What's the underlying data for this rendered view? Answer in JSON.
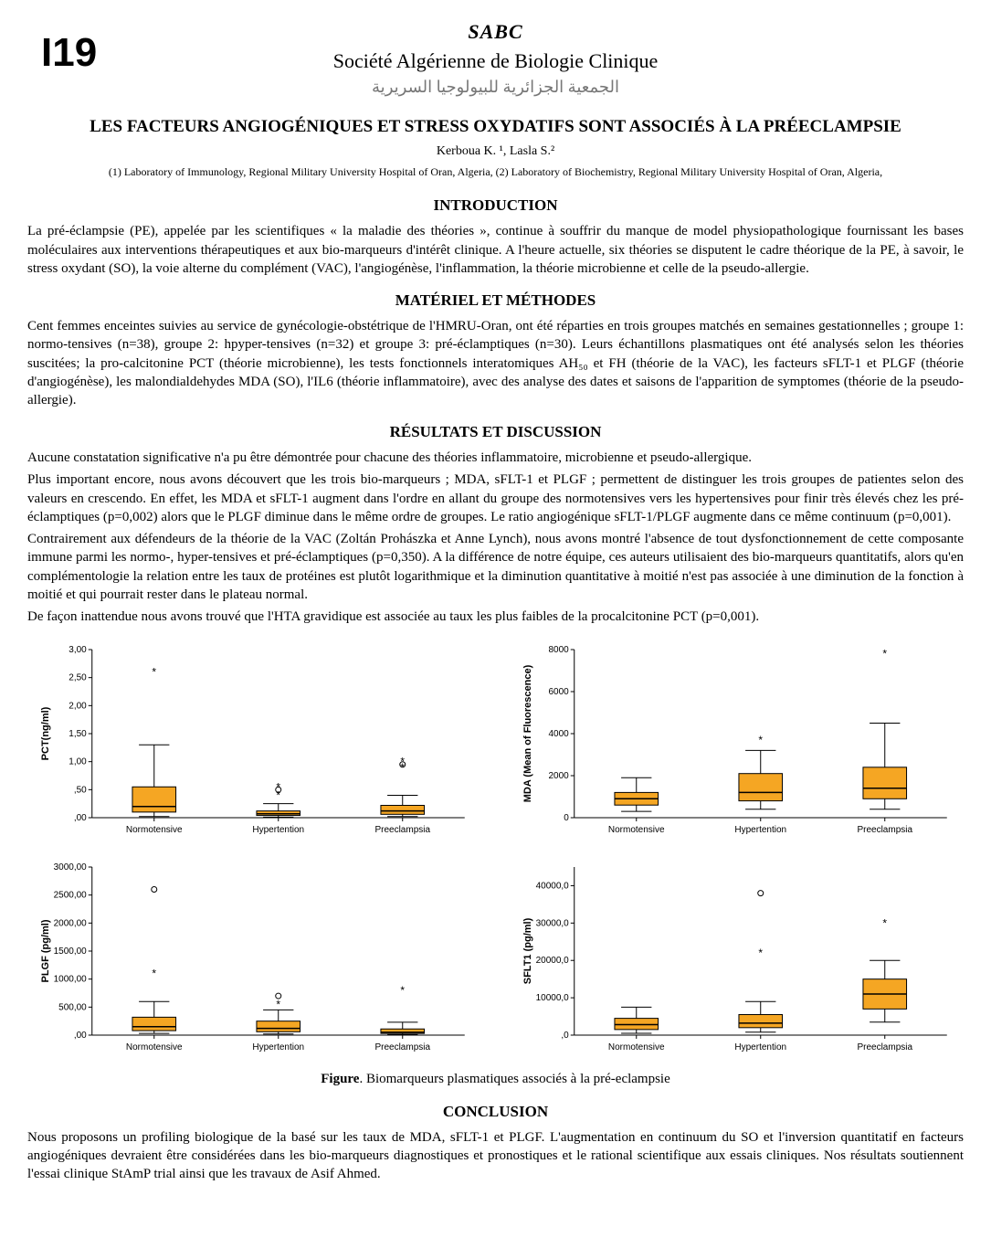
{
  "header": {
    "abstract_id": "I19",
    "logo_text": "SABC",
    "society_fr": "Société Algérienne de Biologie Clinique",
    "society_ar": "الجمعية الجزائرية للبيولوجيا السريرية"
  },
  "title": "LES FACTEURS ANGIOGÉNIQUES ET STRESS OXYDATIFS SONT ASSOCIÉS À LA PRÉECLAMPSIE",
  "authors": "Kerboua K. ¹, Lasla S.²",
  "affiliations": "(1) Laboratory of Immunology, Regional Military University Hospital of Oran, Algeria, (2) Laboratory of Biochemistry, Regional Military University Hospital of Oran, Algeria,",
  "sections": {
    "intro_head": "INTRODUCTION",
    "intro_body": "La pré-éclampsie (PE), appelée par les scientifiques « la maladie des théories », continue à souffrir du manque de model physiopathologique fournissant les bases moléculaires aux interventions thérapeutiques et aux bio-marqueurs d'intérêt clinique. A l'heure actuelle, six théories se disputent le cadre théorique de la PE, à savoir, le stress oxydant (SO), la voie alterne du complément (VAC), l'angiogénèse, l'inflammation, la théorie microbienne et celle de la pseudo-allergie.",
    "methods_head": "MATÉRIEL ET MÉTHODES",
    "methods_body": "Cent femmes enceintes suivies au service de gynécologie-obstétrique de l'HMRU-Oran, ont été réparties en trois groupes  matchés en semaines gestationnelles ; groupe 1: normo-tensives (n=38), groupe 2: hpyper-tensives (n=32) et groupe 3: pré-éclamptiques (n=30). Leurs échantillons plasmatiques ont été analysés selon les théories suscitées; la pro-calcitonine PCT (théorie microbienne), les tests fonctionnels interatomiques AH₅₀ et FH (théorie de la VAC), les facteurs sFLT-1 et PLGF (théorie d'angiogénèse), les malondialdehydes MDA (SO), l'IL6 (théorie inflammatoire), avec des analyse des dates et saisons de l'apparition de symptomes (théorie de la pseudo-allergie).",
    "results_head": "RÉSULTATS ET DISCUSSION",
    "results_p1": "Aucune constatation significative n'a pu être démontrée pour chacune des théories inflammatoire, microbienne et pseudo-allergique.",
    "results_p2": "Plus important encore, nous avons découvert que les trois bio-marqueurs ; MDA, sFLT-1 et PLGF ; permettent de distinguer les trois groupes de patientes selon des valeurs en crescendo. En effet, les MDA et sFLT-1 augment dans l'ordre en allant du groupe des normotensives vers les hypertensives pour finir très élevés chez les pré-éclamptiques (p=0,002) alors que le PLGF diminue dans le même ordre de groupes. Le ratio angiogénique sFLT-1/PLGF augmente dans ce même continuum (p=0,001).",
    "results_p3": "Contrairement aux défendeurs de la théorie de la VAC (Zoltán Prohászka et Anne Lynch), nous avons montré l'absence de tout dysfonctionnement de cette composante immune parmi les normo-, hyper-tensives et pré-éclamptiques (p=0,350). A la différence de notre équipe, ces auteurs utilisaient des bio-marqueurs quantitatifs, alors qu'en complémentologie la relation entre les taux de protéines est plutôt logarithmique et la diminution quantitative à moitié n'est pas associée à une diminution de la fonction à moitié et qui pourrait rester dans le plateau normal.",
    "results_p4": "De façon inattendue nous avons trouvé  que l'HTA gravidique est associée au taux les plus faibles de la procalcitonine PCT (p=0,001).",
    "figure_caption": "Figure. Biomarqueurs plasmatiques associés à la pré-eclampsie",
    "conclusion_head": "CONCLUSION",
    "conclusion_body": "Nous proposons un profiling biologique de la basé sur les taux de MDA, sFLT-1 et PLGF. L'augmentation en continuum du SO et l'inversion quantitatif en facteurs angiogéniques devraient être considérées dans les bio-marqueurs diagnostiques et pronostiques et le rational scientifique aux essais cliniques. Nos résultats soutiennent l'essai clinique StAmP trial ainsi que les travaux de Asif Ahmed."
  },
  "charts": {
    "common": {
      "box_fill": "#f5a623",
      "box_stroke": "#000000",
      "whisker_stroke": "#000000",
      "outlier_stroke": "#000000",
      "axis_stroke": "#000000",
      "tick_fontsize": 10,
      "label_fontsize": 11,
      "categories": [
        "Normotensive",
        "Hypertention",
        "Preeclampsia"
      ]
    },
    "pct": {
      "ylabel": "PCT(ng/ml)",
      "ylim": [
        0,
        3.0
      ],
      "yticks": [
        0,
        0.5,
        1.0,
        1.5,
        2.0,
        2.5,
        3.0
      ],
      "ytick_labels": [
        ",00",
        ",50",
        "1,00",
        "1,50",
        "2,00",
        "2,50",
        "3,00"
      ],
      "boxes": [
        {
          "q1": 0.1,
          "median": 0.2,
          "q3": 0.55,
          "wlow": 0.02,
          "whigh": 1.3,
          "outliers": [
            2.6
          ]
        },
        {
          "q1": 0.04,
          "median": 0.07,
          "q3": 0.12,
          "wlow": 0.01,
          "whigh": 0.25,
          "outliers": [
            0.4,
            0.5,
            0.55
          ]
        },
        {
          "q1": 0.06,
          "median": 0.12,
          "q3": 0.22,
          "wlow": 0.02,
          "whigh": 0.4,
          "outliers": [
            0.9,
            0.95,
            1.0
          ]
        }
      ]
    },
    "mda": {
      "ylabel": "MDA (Mean of Fluorescence)",
      "ylim": [
        0,
        8000
      ],
      "yticks": [
        0,
        2000,
        4000,
        6000,
        8000
      ],
      "ytick_labels": [
        "0",
        "2000",
        "4000",
        "6000",
        "8000"
      ],
      "boxes": [
        {
          "q1": 600,
          "median": 900,
          "q3": 1200,
          "wlow": 300,
          "whigh": 1900,
          "outliers": []
        },
        {
          "q1": 800,
          "median": 1200,
          "q3": 2100,
          "wlow": 400,
          "whigh": 3200,
          "outliers": [
            3700
          ]
        },
        {
          "q1": 900,
          "median": 1400,
          "q3": 2400,
          "wlow": 400,
          "whigh": 4500,
          "outliers": [
            7800
          ]
        }
      ]
    },
    "plgf": {
      "ylabel": "PLGF (pg/ml)",
      "ylim": [
        0,
        3000
      ],
      "yticks": [
        0,
        500,
        1000,
        1500,
        2000,
        2500,
        3000
      ],
      "ytick_labels": [
        ",00",
        "500,00",
        "1000,00",
        "1500,00",
        "2000,00",
        "2500,00",
        "3000,00"
      ],
      "boxes": [
        {
          "q1": 80,
          "median": 150,
          "q3": 320,
          "wlow": 30,
          "whigh": 600,
          "outliers": [
            1100,
            2600
          ]
        },
        {
          "q1": 60,
          "median": 120,
          "q3": 250,
          "wlow": 20,
          "whigh": 450,
          "outliers": [
            550,
            700
          ]
        },
        {
          "q1": 30,
          "median": 50,
          "q3": 110,
          "wlow": 10,
          "whigh": 230,
          "outliers": [
            800
          ]
        }
      ]
    },
    "sflt1": {
      "ylabel": "SFLT1 (pg/ml)",
      "ylim": [
        0,
        45000
      ],
      "yticks": [
        0,
        10000,
        20000,
        30000,
        40000
      ],
      "ytick_labels": [
        ",0",
        "10000,0",
        "20000,0",
        "30000,0",
        "40000,0"
      ],
      "boxes": [
        {
          "q1": 1500,
          "median": 2800,
          "q3": 4500,
          "wlow": 500,
          "whigh": 7500,
          "outliers": []
        },
        {
          "q1": 2000,
          "median": 3200,
          "q3": 5500,
          "wlow": 800,
          "whigh": 9000,
          "outliers": [
            22000,
            38000
          ]
        },
        {
          "q1": 7000,
          "median": 11000,
          "q3": 15000,
          "wlow": 3500,
          "whigh": 20000,
          "outliers": [
            30000
          ]
        }
      ]
    }
  }
}
